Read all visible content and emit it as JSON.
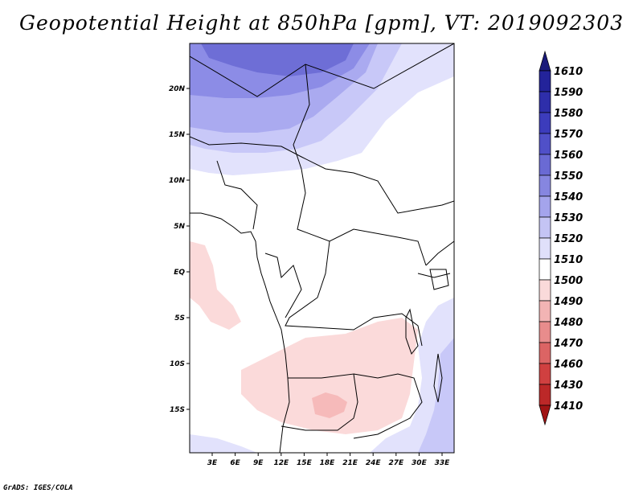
{
  "title": "Geopotential Height at 850hPa [gpm], VT: 2019092303",
  "credit": "GrADS: IGES/COLA",
  "map": {
    "lat_labels": [
      "20N",
      "15N",
      "10N",
      "5N",
      "EQ",
      "5S",
      "10S",
      "15S"
    ],
    "lon_labels": [
      "3E",
      "6E",
      "9E",
      "12E",
      "15E",
      "18E",
      "21E",
      "24E",
      "27E",
      "30E",
      "33E"
    ],
    "colors": {
      "land_border": "#000000",
      "high_1560": "#6e6ed6",
      "high_1550": "#8c8ce6",
      "high_1540": "#aaaaf0",
      "high_1530": "#c8c8f8",
      "high_1520": "#e2e2fc",
      "neutral": "#ffffff",
      "low_1500": "#fbdada",
      "low_1490": "#f6baba"
    }
  },
  "colorbar": {
    "labels": [
      "1610",
      "1590",
      "1580",
      "1570",
      "1560",
      "1550",
      "1540",
      "1530",
      "1520",
      "1510",
      "1500",
      "1490",
      "1480",
      "1470",
      "1460",
      "1430",
      "1410"
    ],
    "colors": [
      "#1a1a7a",
      "#23239a",
      "#2e2eaa",
      "#3c3cbc",
      "#5050c8",
      "#6a6ad4",
      "#8686e0",
      "#a4a4ec",
      "#c4c4f4",
      "#e0e0fa",
      "#ffffff",
      "#fadada",
      "#f2b4b4",
      "#e88c8c",
      "#dc6464",
      "#d04040",
      "#bc2828",
      "#a01414"
    ]
  }
}
